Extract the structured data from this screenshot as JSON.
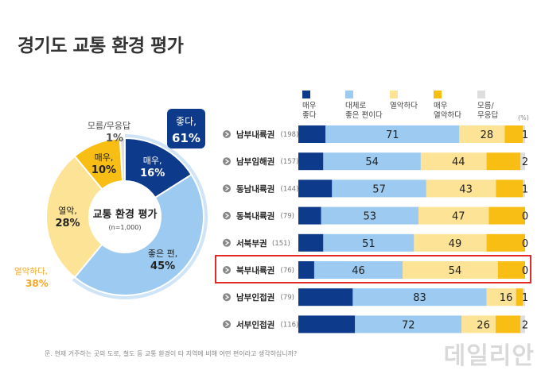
{
  "title": "경기도 교통 환경 평가",
  "unit_note": "(%)",
  "footnote": "문. 현재 거주하는 곳의 도로, 철도 등 교통 환경이 타 지역에 비해 어떤 편이라고 생각하십니까?",
  "watermark": "데일리안",
  "colors": {
    "very_good": "#0e3a8c",
    "good": "#9ccaf0",
    "bad": "#fde396",
    "very_bad": "#f9be13",
    "dk": "#dedede",
    "accent_good": "#0e3a8c",
    "accent_bad": "#f5a623",
    "highlight": "#e32a2a"
  },
  "chart_data": [
    {
      "type": "pie",
      "title": "교통 환경 평가",
      "subtitle": "(n=1,000)",
      "slices": [
        {
          "key": "very_good",
          "label_lines": [
            "매우,"
          ],
          "pct": "16%",
          "value": 16
        },
        {
          "key": "good",
          "label_lines": [
            "좋은 편,"
          ],
          "pct": "45%",
          "value": 45
        },
        {
          "key": "bad",
          "label_lines": [
            "열악,"
          ],
          "pct": "28%",
          "value": 28
        },
        {
          "key": "very_bad",
          "label_lines": [
            "매우,"
          ],
          "pct": "10%",
          "value": 10
        },
        {
          "key": "dk",
          "label_lines": [
            "모름/무응답"
          ],
          "pct": "1%",
          "value": 1
        }
      ],
      "group_good": {
        "label": "좋다,",
        "pct": "61%",
        "value": 61
      },
      "group_bad": {
        "label": "열악하다,",
        "pct": "38%",
        "value": 38
      }
    },
    {
      "type": "bar",
      "orientation": "horizontal-stacked",
      "legend": [
        {
          "key": "very_good",
          "lines": [
            "매우",
            "좋다"
          ]
        },
        {
          "key": "good",
          "lines": [
            "대체로",
            "좋은 편이다"
          ]
        },
        {
          "key": "bad",
          "lines": [
            "열악하다"
          ]
        },
        {
          "key": "very_bad",
          "lines": [
            "매우",
            "열악하다"
          ]
        },
        {
          "key": "dk",
          "lines": [
            "모름/",
            "무응답"
          ]
        }
      ],
      "rows": [
        {
          "region": "남부내륙권",
          "n": "(198)",
          "segments": [
            12,
            59,
            20,
            8,
            1
          ],
          "good_label": "71",
          "bad_label": "28",
          "dk_label": "1",
          "highlight": false
        },
        {
          "region": "남부임해권",
          "n": "(157)",
          "segments": [
            11,
            43,
            29,
            15,
            2
          ],
          "good_label": "54",
          "bad_label": "44",
          "dk_label": "2",
          "highlight": false
        },
        {
          "region": "동남내륙권",
          "n": "(144)",
          "segments": [
            15,
            42,
            31,
            12,
            1
          ],
          "good_label": "57",
          "bad_label": "43",
          "dk_label": "1",
          "highlight": false
        },
        {
          "region": "동북내륙권",
          "n": "(79)",
          "segments": [
            10,
            43,
            31,
            16,
            0
          ],
          "good_label": "53",
          "bad_label": "47",
          "dk_label": "0",
          "highlight": false
        },
        {
          "region": "서북부권",
          "n": "(151)",
          "segments": [
            11,
            40,
            32,
            17,
            0
          ],
          "good_label": "51",
          "bad_label": "49",
          "dk_label": "0",
          "highlight": false
        },
        {
          "region": "북부내륙권",
          "n": "(76)",
          "segments": [
            7,
            39,
            42,
            12,
            0
          ],
          "good_label": "46",
          "bad_label": "54",
          "dk_label": "0",
          "highlight": true
        },
        {
          "region": "남부인접권",
          "n": "(79)",
          "segments": [
            24,
            59,
            13,
            3,
            1
          ],
          "good_label": "83",
          "bad_label": "16",
          "dk_label": "1",
          "highlight": false
        },
        {
          "region": "서부인접권",
          "n": "(116)",
          "segments": [
            25,
            47,
            15,
            11,
            2
          ],
          "good_label": "72",
          "bad_label": "26",
          "dk_label": "2",
          "highlight": false
        }
      ]
    }
  ]
}
